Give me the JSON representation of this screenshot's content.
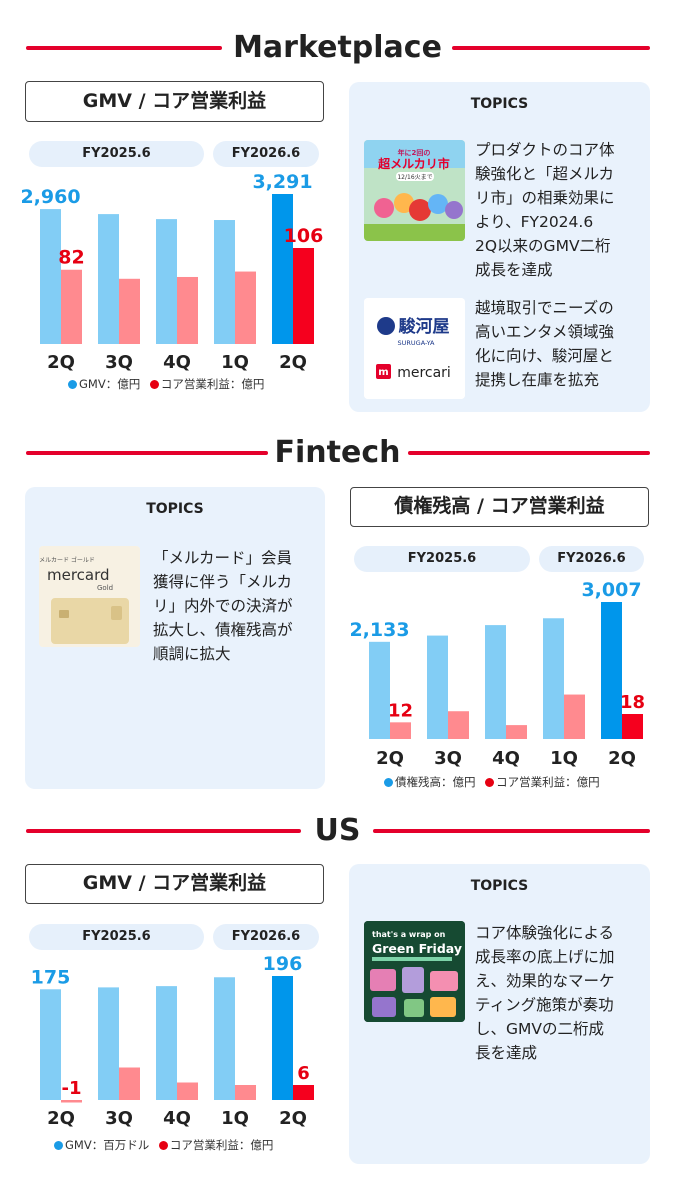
{
  "sections": {
    "marketplace": "Marketplace",
    "fintech": "Fintech",
    "us": "US"
  },
  "fy_labels": {
    "prev": "FY2025.6",
    "curr": "FY2026.6"
  },
  "topics_label": "TOPICS",
  "colors": {
    "accent_red": "#e4002b",
    "bar_light_blue": "#82cdf5",
    "bar_highlight_blue": "#0096eb",
    "bar_light_red": "#ff8a8f",
    "bar_highlight_red": "#f5001e",
    "label_blue": "#1a9be6",
    "label_red": "#e60012"
  },
  "marketplace": {
    "box_title": "GMV / コア営業利益",
    "legend": [
      "GMV：億円",
      "コア営業利益：億円"
    ],
    "topics": [
      {
        "icon": "cho-mercari-ichi-banner-icon",
        "image_text": [
          "年に2回の",
          "超メルカリ市",
          "12/16火まで"
        ],
        "text": [
          "プロダクトのコア体",
          "験強化と「超メルカ",
          "リ市」の相乗効果に",
          "より、FY2024.6",
          "2Q以来のGMV二桁",
          "成長を達成"
        ]
      },
      {
        "icon": "surugaya-mercari-logo-icon",
        "image_text": [
          "駿河屋",
          "SURUGA-YA",
          "mercari"
        ],
        "text": [
          "越境取引でニーズの",
          "高いエンタメ領域強",
          "化に向け、駿河屋と",
          "提携し在庫を拡充"
        ]
      }
    ]
  },
  "fintech": {
    "box_title": "債権残高 / コア営業利益",
    "legend": [
      "債権残高：億円",
      "コア営業利益：億円"
    ],
    "topics": [
      {
        "icon": "mercard-gold-card-icon",
        "image_text": [
          "メルカード ゴールド",
          "mercard",
          "Gold"
        ],
        "text": [
          "「メルカード」会員",
          "獲得に伴う「メルカ",
          "リ」内外での決済が",
          "拡大し、債権残高が",
          "順調に拡大"
        ]
      }
    ]
  },
  "us": {
    "box_title": "GMV / コア営業利益",
    "legend": [
      "GMV：百万ドル",
      "コア営業利益：億円"
    ],
    "topics": [
      {
        "icon": "green-friday-banner-icon",
        "image_text": [
          "that's a wrap on",
          "Green Friday"
        ],
        "text": [
          "コア体験強化による",
          "成長率の底上げに加",
          "え、効果的なマーケ",
          "ティング施策が奏功",
          "し、GMVの二桁成",
          "長を達成"
        ]
      }
    ]
  },
  "chart_data": [
    {
      "type": "bar",
      "categories": [
        "2Q",
        "3Q",
        "4Q",
        "1Q",
        "2Q"
      ],
      "fiscal_groups": [
        {
          "label": "FY2025.6",
          "categories": [
            0,
            1,
            2
          ]
        },
        {
          "label": "FY2026.6",
          "categories": [
            3,
            4
          ]
        }
      ],
      "series": [
        {
          "name": "GMV：億円",
          "values": [
            2960,
            2850,
            2740,
            2720,
            3291
          ],
          "shown_labels": [
            0,
            4
          ]
        },
        {
          "name": "コア営業利益：億円",
          "values": [
            82,
            72,
            74,
            80,
            106
          ],
          "shown_labels": [
            0,
            4
          ]
        }
      ],
      "highlight_index": 4
    },
    {
      "type": "bar",
      "categories": [
        "2Q",
        "3Q",
        "4Q",
        "1Q",
        "2Q"
      ],
      "fiscal_groups": [
        {
          "label": "FY2025.6",
          "categories": [
            0,
            1,
            2
          ]
        },
        {
          "label": "FY2026.6",
          "categories": [
            3,
            4
          ]
        }
      ],
      "series": [
        {
          "name": "債権残高：億円",
          "values": [
            2133,
            2270,
            2500,
            2650,
            3007
          ],
          "shown_labels": [
            0,
            4
          ]
        },
        {
          "name": "コア営業利益：億円",
          "values": [
            12,
            20,
            10,
            32,
            18
          ],
          "shown_labels": [
            0,
            4
          ]
        }
      ],
      "highlight_index": 4
    },
    {
      "type": "bar",
      "categories": [
        "2Q",
        "3Q",
        "4Q",
        "1Q",
        "2Q"
      ],
      "fiscal_groups": [
        {
          "label": "FY2025.6",
          "categories": [
            0,
            1,
            2
          ]
        },
        {
          "label": "FY2026.6",
          "categories": [
            3,
            4
          ]
        }
      ],
      "series": [
        {
          "name": "GMV：百万ドル",
          "values": [
            175,
            178,
            180,
            194,
            196
          ],
          "shown_labels": [
            0,
            4
          ]
        },
        {
          "name": "コア営業利益：億円",
          "values": [
            -1,
            13,
            7,
            6,
            6
          ],
          "shown_labels": [
            0,
            4
          ]
        }
      ],
      "highlight_index": 4
    }
  ]
}
